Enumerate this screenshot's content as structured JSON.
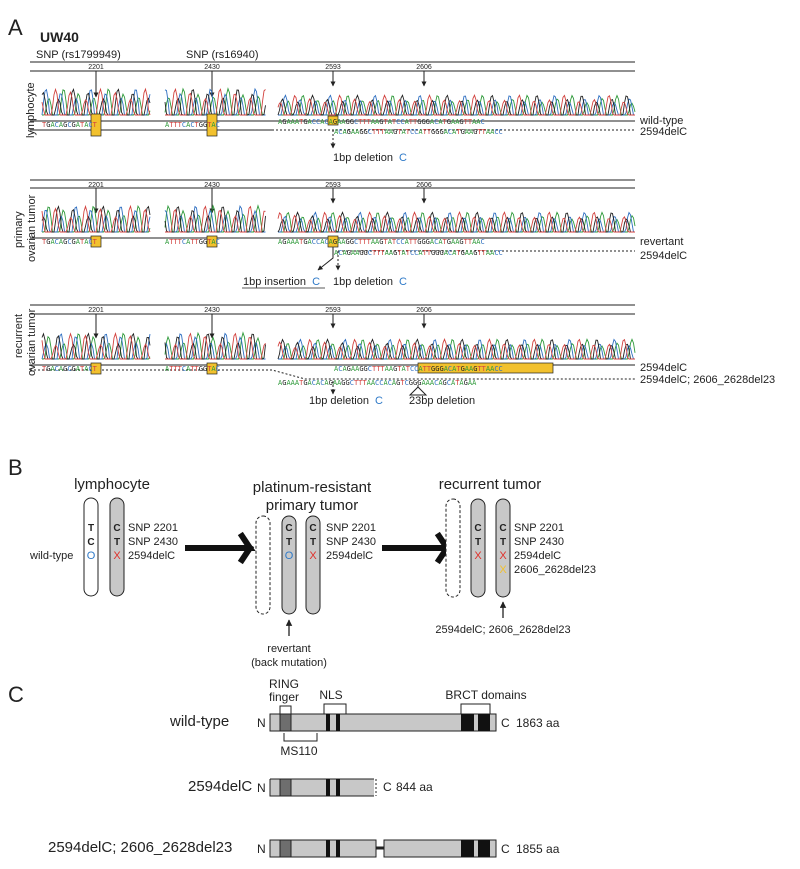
{
  "colors": {
    "A": "#2e9a3a",
    "C": "#2f6fc1",
    "G": "#222222",
    "T": "#d2423f",
    "highlight": "#f2c12e",
    "blue": "#2f7ac8",
    "red": "#e0302a",
    "protein_body": "#c8c8c8",
    "protein_dark": "#111111",
    "ring_shade": "#6e6e6e"
  },
  "panel_a": {
    "label": "A",
    "sample": "UW40",
    "snp1_label": "SNP (rs1799949)",
    "snp2_label": "SNP (rs16940)",
    "positions": {
      "p2201": "2201",
      "p2430": "2430",
      "p2593": "2593",
      "p2606": "2606"
    },
    "rows": [
      {
        "name": "lymphocyte",
        "seq_left": "TGACAGCGATACT",
        "seq_mid": "ATTTCACTGGTAC",
        "seq_top": "AGAAATGACCACAGAAGGCTTTAAGTATCCATTGGGACATGAAGTTAAC",
        "seq_bottom": "ACAGAAGGCTTTAAGTATCCATTGGGACATGAAGTTAACC",
        "allele_top": "wild-type",
        "allele_bottom": "2594delC",
        "note1": "1bp deletion",
        "note1_base": "C"
      },
      {
        "name_line1": "primary",
        "name_line2": "ovarian tumor",
        "seq_left": "TGACAGCGATACT",
        "seq_mid": "ATTTCATTGGTAC",
        "seq_top": "AGAAATGACCACAGAAGGCTTTAAGTATCCATTGGGACATGAAGTTAAC",
        "seq_bottom": "ACAGAAGGCTTTAAGTATCCATTGGGACATGAAGTTAACC",
        "allele_top": "revertant",
        "allele_bottom": "2594delC",
        "note1": "1bp insertion",
        "note1_base": "C",
        "note2": "1bp deletion",
        "note2_base": "C"
      },
      {
        "name_line1": "recurrent",
        "name_line2": "ovarian tumor",
        "seq_left": "TGACAGCGATACT",
        "seq_mid": "ATTTCATTGGTAC",
        "seq_top": "ACAGAAGGCTTTAAGTATCCATTGGGACATGAAGTTAACC",
        "seq_bottom": "AGAAATGACACAGAAGGCTTTAACCACAGTCGGGAAACAGCATAGAA",
        "allele_top": "2594delC",
        "allele_bottom": "2594delC; 2606_2628del23",
        "note1": "1bp deletion",
        "note1_base": "C",
        "note2": "23bp deletion"
      }
    ]
  },
  "panel_b": {
    "label": "B",
    "stage1_title": "lymphocyte",
    "stage2_title_1": "platinum-resistant",
    "stage2_title_2": "primary tumor",
    "stage3_title": "recurrent tumor",
    "snp1_allele_a": "T",
    "snp1_allele_b": "C",
    "snp2_allele_a": "C",
    "snp2_allele_b": "T",
    "marker_ok": "O",
    "marker_mut": "X",
    "snp1": "SNP 2201",
    "snp2": "SNP 2430",
    "mut1": "2594delC",
    "mut2": "2606_2628del23",
    "wildtype_label": "wild-type",
    "revertant_1": "revertant",
    "revertant_2": "(back mutation)",
    "recurrent_caption": "2594delC; 2606_2628del23"
  },
  "panel_c": {
    "label": "C",
    "ring_1": "RING",
    "ring_2": "finger",
    "nls": "NLS",
    "brct": "BRCT domains",
    "ms110": "MS110",
    "n": "N",
    "c": "C",
    "proteins": [
      {
        "name": "wild-type",
        "length": "1863 aa"
      },
      {
        "name": "2594delC",
        "length": "844 aa"
      },
      {
        "name": "2594delC; 2606_2628del23",
        "length": "1855 aa"
      }
    ]
  }
}
